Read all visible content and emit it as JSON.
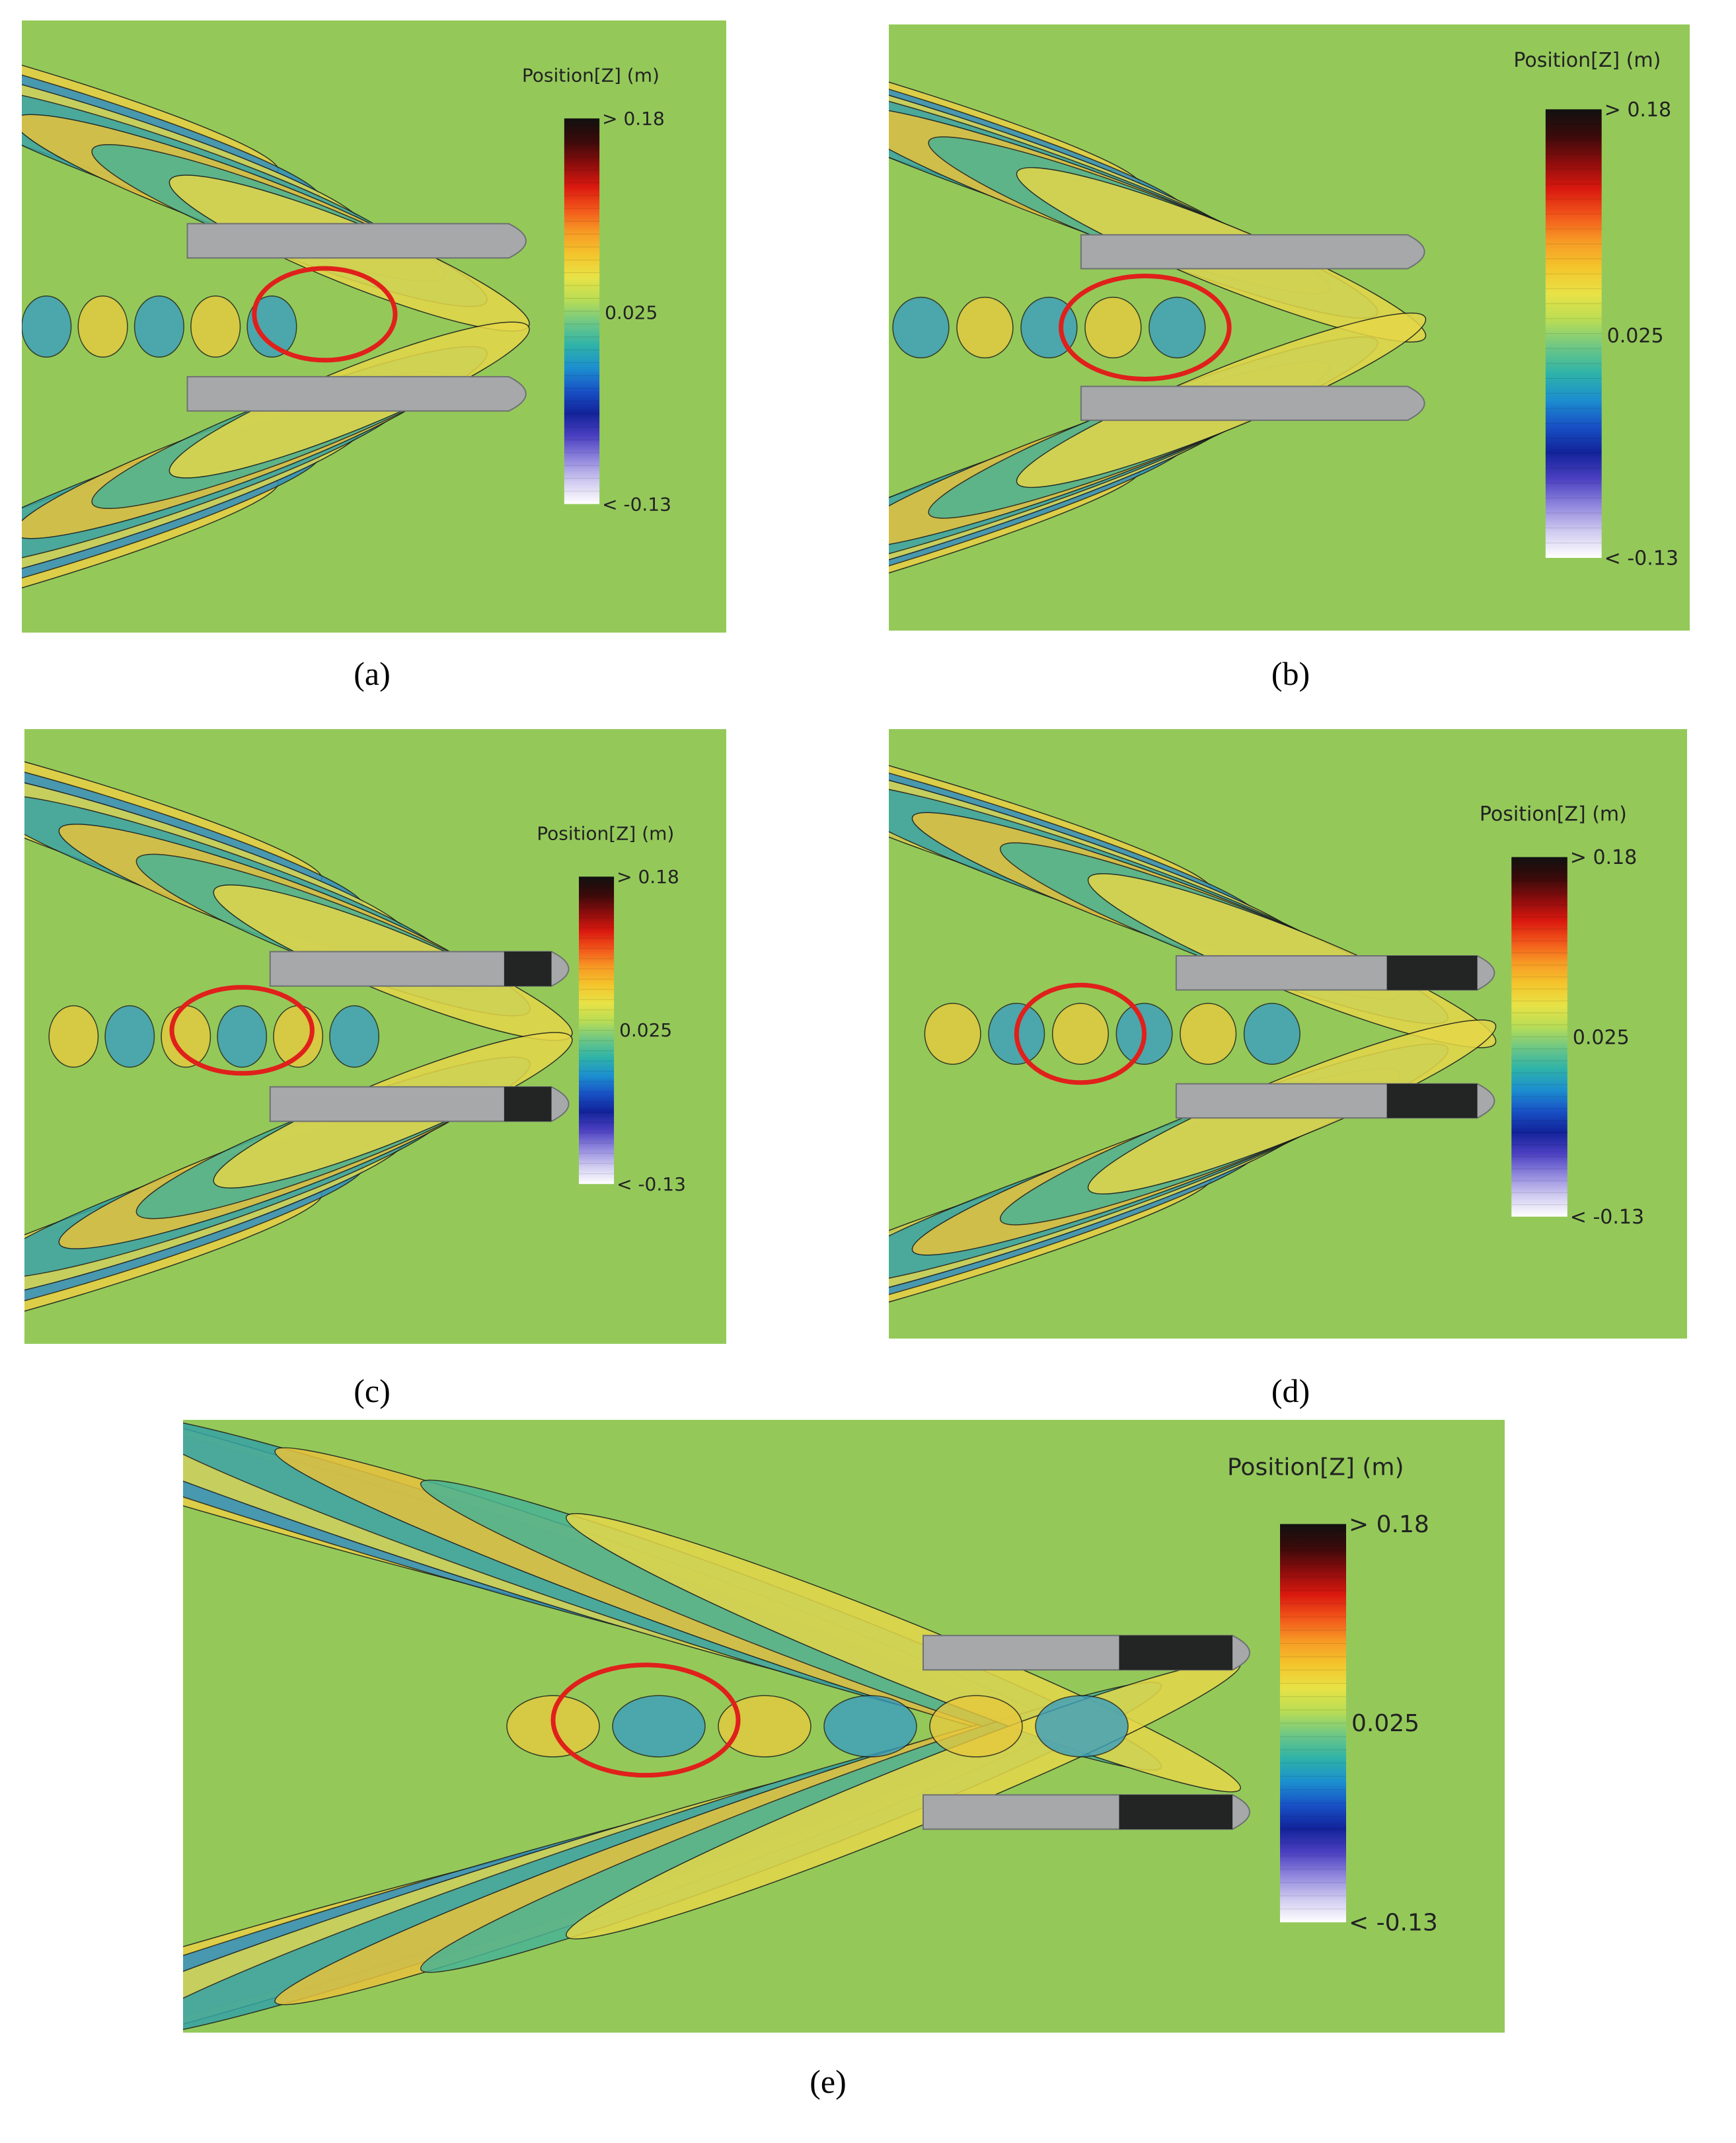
{
  "figure": {
    "panels": [
      {
        "caption": "(a)",
        "legend": {
          "title": "Position[Z] (m)",
          "max_label": "> 0.18",
          "mid_label": "0.025",
          "min_label": "< -0.13"
        }
      },
      {
        "caption": "(b)",
        "legend": {
          "title": "Position[Z] (m)",
          "max_label": "> 0.18",
          "mid_label": "0.025",
          "min_label": "< -0.13"
        }
      },
      {
        "caption": "(c)",
        "legend": {
          "title": "Position[Z] (m)",
          "max_label": "> 0.18",
          "mid_label": "0.025",
          "min_label": "< -0.13"
        }
      },
      {
        "caption": "(d)",
        "legend": {
          "title": "Position[Z] (m)",
          "max_label": "> 0.18",
          "mid_label": "0.025",
          "min_label": "< -0.13"
        }
      },
      {
        "caption": "(e)",
        "legend": {
          "title": "Position[Z] (m)",
          "max_label": "> 0.18",
          "mid_label": "0.025",
          "min_label": "< -0.13"
        }
      }
    ]
  }
}
